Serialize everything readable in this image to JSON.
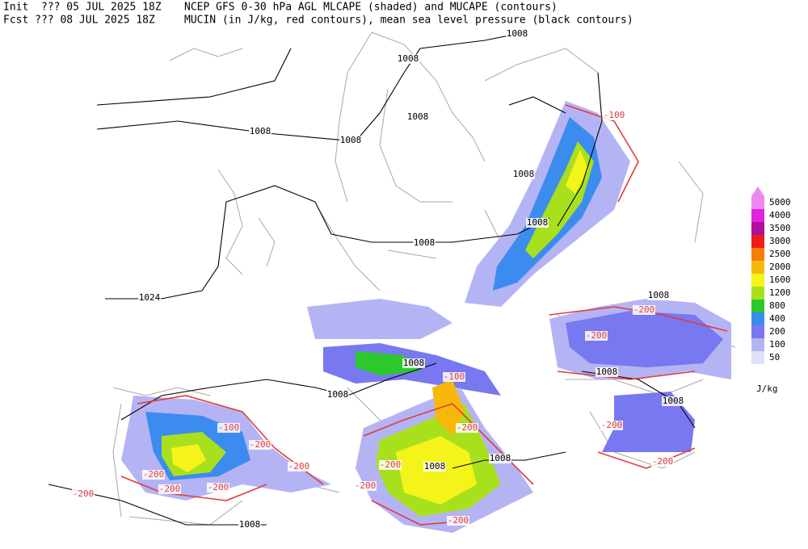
{
  "header": {
    "lines": [
      {
        "run": "Init  ??? 05 JUL 2025 18Z",
        "description": "NCEP GFS 0-30 hPa AGL MLCAPE (shaded) and MUCAPE (contours)"
      },
      {
        "run": "Fcst ??? 08 JUL 2025 18Z",
        "description": "MUCIN (in J/kg, red contours), mean sea level pressure (black contours)"
      }
    ]
  },
  "contour_labels": [
    {
      "text": "1008",
      "color": "#000000"
    },
    {
      "text": "1008",
      "color": "#000000"
    },
    {
      "text": "1008",
      "color": "#000000"
    },
    {
      "text": "1008",
      "color": "#000000"
    },
    {
      "text": "1008",
      "color": "#000000"
    },
    {
      "text": "1008",
      "color": "#000000"
    },
    {
      "text": "1008",
      "color": "#000000"
    },
    {
      "text": "1008",
      "color": "#000000"
    },
    {
      "text": "1024",
      "color": "#000000"
    },
    {
      "text": "-100",
      "color": "#e03c3c"
    },
    {
      "text": "1008",
      "color": "#000000"
    },
    {
      "text": "-200",
      "color": "#e03c3c"
    },
    {
      "text": "-200",
      "color": "#e03c3c"
    },
    {
      "text": "1008",
      "color": "#000000"
    },
    {
      "text": "-100",
      "color": "#e03c3c"
    },
    {
      "text": "1008",
      "color": "#000000"
    },
    {
      "text": "1008",
      "color": "#000000"
    },
    {
      "text": "1008",
      "color": "#000000"
    },
    {
      "text": "-100",
      "color": "#e03c3c"
    },
    {
      "text": "-200",
      "color": "#e03c3c"
    },
    {
      "text": "-200",
      "color": "#e03c3c"
    },
    {
      "text": "-200",
      "color": "#e03c3c"
    },
    {
      "text": "-200",
      "color": "#e03c3c"
    },
    {
      "text": "1008",
      "color": "#000000"
    },
    {
      "text": "1008",
      "color": "#000000"
    },
    {
      "text": "-200",
      "color": "#e03c3c"
    },
    {
      "text": "-200",
      "color": "#e03c3c"
    },
    {
      "text": "-200",
      "color": "#e03c3c"
    },
    {
      "text": "-200",
      "color": "#e03c3c"
    },
    {
      "text": "-200",
      "color": "#e03c3c"
    },
    {
      "text": "-200",
      "color": "#e03c3c"
    },
    {
      "text": "1008",
      "color": "#000000"
    },
    {
      "text": "-200",
      "color": "#e03c3c"
    },
    {
      "text": "-200",
      "color": "#e03c3c"
    }
  ],
  "legend": {
    "unit": "J/kg",
    "levels": [
      {
        "value": 5000,
        "color": "#ee88ee"
      },
      {
        "value": 4000,
        "color": "#e022e0"
      },
      {
        "value": 3500,
        "color": "#b0109a"
      },
      {
        "value": 3000,
        "color": "#f01c1c"
      },
      {
        "value": 2500,
        "color": "#f57d0a"
      },
      {
        "value": 2000,
        "color": "#f8b80a"
      },
      {
        "value": 1600,
        "color": "#f4f41a"
      },
      {
        "value": 1200,
        "color": "#a8e01e"
      },
      {
        "value": 800,
        "color": "#2cc82c"
      },
      {
        "value": 400,
        "color": "#3c8cf0"
      },
      {
        "value": 200,
        "color": "#7878f0"
      },
      {
        "value": 100,
        "color": "#b4b4f4"
      },
      {
        "value": 50,
        "color": "#e0e0fa"
      }
    ]
  }
}
